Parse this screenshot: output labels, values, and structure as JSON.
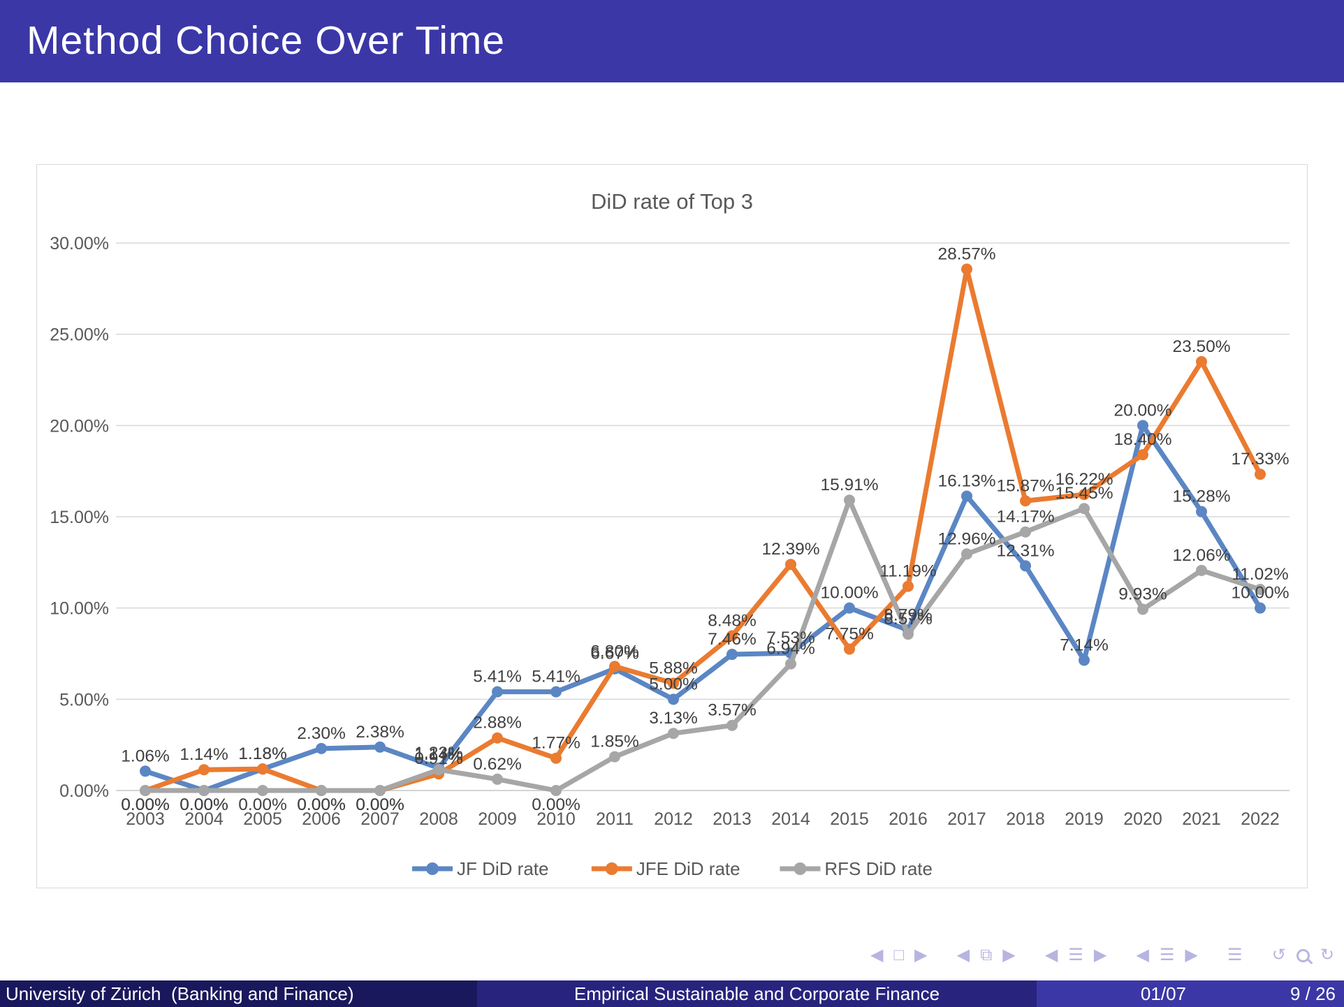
{
  "slide": {
    "title": "Method Choice Over Time"
  },
  "chart_data": {
    "type": "line",
    "title": "DiD rate of Top 3",
    "categories": [
      "2003",
      "2004",
      "2005",
      "2006",
      "2007",
      "2008",
      "2009",
      "2010",
      "2011",
      "2012",
      "2013",
      "2014",
      "2015",
      "2016",
      "2017",
      "2018",
      "2019",
      "2020",
      "2021",
      "2022"
    ],
    "series": [
      {
        "name": "JF DiD rate",
        "color": "#5B86C4",
        "values": [
          1.06,
          0.0,
          1.18,
          2.3,
          2.38,
          1.23,
          5.41,
          5.41,
          6.67,
          5.0,
          7.46,
          7.53,
          10.0,
          8.79,
          16.13,
          12.31,
          7.14,
          20.0,
          15.28,
          10.0
        ]
      },
      {
        "name": "JFE DiD rate",
        "color": "#EA7B30",
        "values": [
          0.0,
          1.14,
          1.18,
          0.0,
          0.0,
          0.91,
          2.88,
          1.77,
          6.8,
          5.88,
          8.48,
          12.39,
          7.75,
          11.19,
          28.57,
          15.87,
          16.22,
          18.4,
          23.5,
          17.33
        ]
      },
      {
        "name": "RFS DiD rate",
        "color": "#A6A6A6",
        "values": [
          0.0,
          0.0,
          0.0,
          0.0,
          0.0,
          1.14,
          0.62,
          0.0,
          1.85,
          3.13,
          3.57,
          6.94,
          15.91,
          8.57,
          12.96,
          14.17,
          15.45,
          9.93,
          12.06,
          11.02
        ]
      }
    ],
    "y_ticks": [
      "0.00%",
      "5.00%",
      "10.00%",
      "15.00%",
      "20.00%",
      "25.00%",
      "30.00%"
    ],
    "ylim": [
      0,
      30
    ],
    "grid": true,
    "legend_position": "bottom",
    "label_color": "#404040",
    "axis_color": "#595959",
    "grid_color": "#D9D9D9"
  },
  "nav": {
    "groups": [
      [
        {
          "name": "nav-prev-slide-icon",
          "glyph": "◀"
        },
        {
          "name": "nav-frame-icon",
          "glyph": "□"
        },
        {
          "name": "nav-next-slide-icon",
          "glyph": "▶"
        }
      ],
      [
        {
          "name": "nav-prev-frame-icon",
          "glyph": "◀"
        },
        {
          "name": "nav-frame-stack-icon",
          "glyph": "⧉"
        },
        {
          "name": "nav-next-frame-icon",
          "glyph": "▶"
        }
      ],
      [
        {
          "name": "nav-prev-subsection-icon",
          "glyph": "◀"
        },
        {
          "name": "nav-subsection-icon",
          "glyph": "☰"
        },
        {
          "name": "nav-next-subsection-icon",
          "glyph": "▶"
        }
      ],
      [
        {
          "name": "nav-prev-section-icon",
          "glyph": "◀"
        },
        {
          "name": "nav-section-icon",
          "glyph": "☰"
        },
        {
          "name": "nav-next-section-icon",
          "glyph": "▶"
        }
      ],
      [
        {
          "name": "nav-appendix-icon",
          "glyph": "☰"
        }
      ],
      [
        {
          "name": "nav-back-icon",
          "glyph": "↺"
        },
        {
          "name": "nav-search-icon",
          "shape": "search"
        },
        {
          "name": "nav-forward-icon",
          "glyph": "↻"
        }
      ]
    ]
  },
  "footer": {
    "author": "University of Zürich  (Banking and Finance)",
    "course": "Empirical Sustainable and Corporate Finance",
    "date": "01/07",
    "page": "9 / 26"
  }
}
